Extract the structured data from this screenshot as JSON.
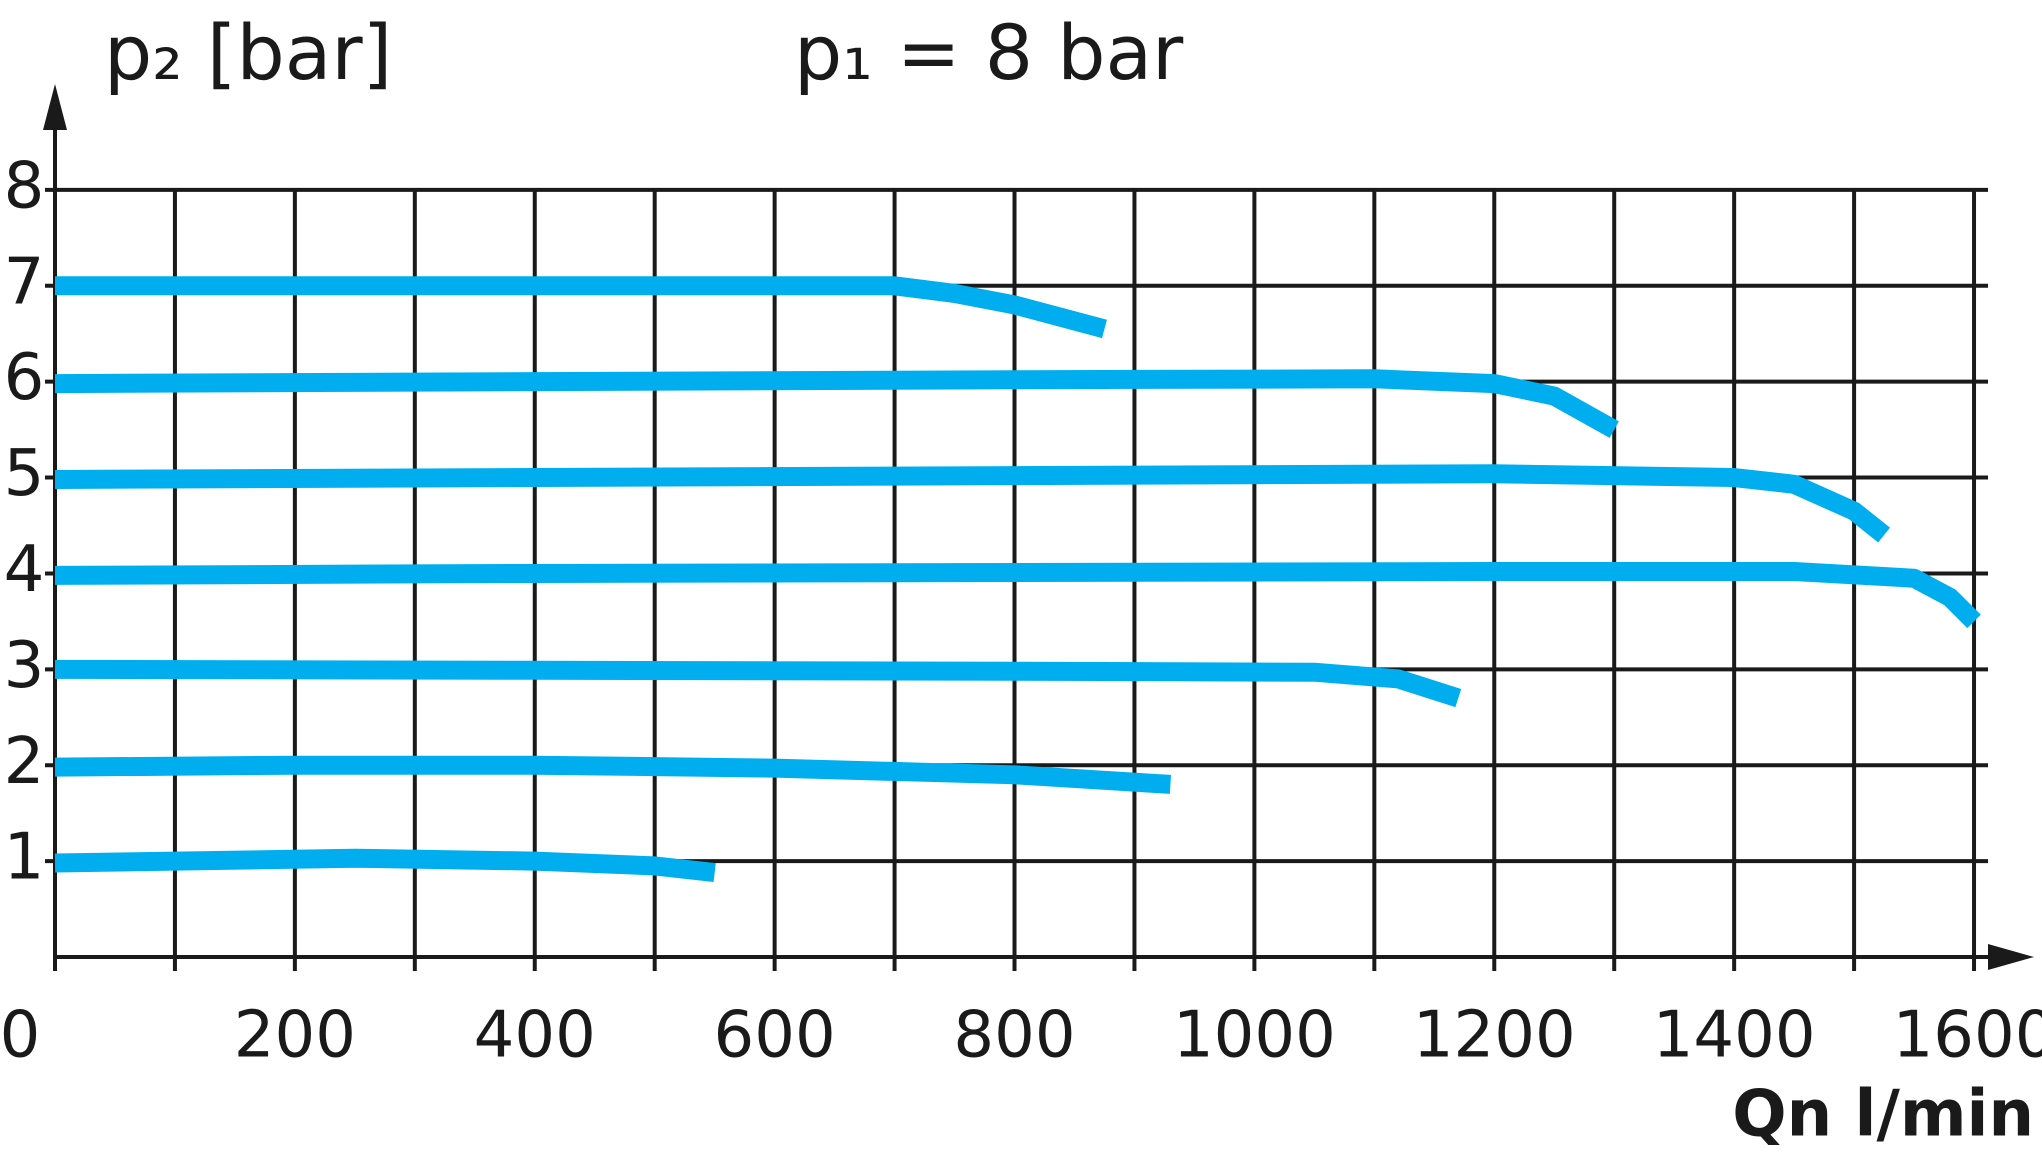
{
  "chart_data": {
    "type": "line",
    "title": "p₁ = 8 bar",
    "y_label": "p₂ [bar]",
    "x_label": "Qn l/min",
    "xlim": [
      0,
      1650
    ],
    "ylim": [
      0,
      9
    ],
    "xticks": [
      0,
      200,
      400,
      600,
      800,
      1000,
      1200,
      1400,
      1600
    ],
    "yticks": [
      1,
      2,
      3,
      4,
      5,
      6,
      7,
      8
    ],
    "grid": true,
    "series": [
      {
        "name": "p2 = 7 bar",
        "color": "#00aeef",
        "x": [
          0,
          200,
          400,
          600,
          700,
          750,
          800,
          875
        ],
        "values": [
          7.0,
          7.0,
          7.0,
          7.0,
          7.0,
          6.92,
          6.8,
          6.55
        ]
      },
      {
        "name": "p2 = 6 bar",
        "color": "#00aeef",
        "x": [
          0,
          400,
          800,
          1100,
          1200,
          1250,
          1300
        ],
        "values": [
          5.98,
          6.0,
          6.02,
          6.03,
          5.98,
          5.85,
          5.5
        ]
      },
      {
        "name": "p2 = 5 bar",
        "color": "#00aeef",
        "x": [
          0,
          400,
          800,
          1200,
          1400,
          1450,
          1500,
          1525
        ],
        "values": [
          4.98,
          5.0,
          5.02,
          5.04,
          5.0,
          4.93,
          4.65,
          4.4
        ]
      },
      {
        "name": "p2 = 4 bar",
        "color": "#00aeef",
        "x": [
          0,
          400,
          800,
          1200,
          1450,
          1550,
          1580,
          1600
        ],
        "values": [
          3.98,
          4.0,
          4.01,
          4.02,
          4.02,
          3.95,
          3.75,
          3.5
        ]
      },
      {
        "name": "p2 = 3 bar",
        "color": "#00aeef",
        "x": [
          0,
          400,
          800,
          1050,
          1120,
          1170
        ],
        "values": [
          3.0,
          2.99,
          2.98,
          2.97,
          2.9,
          2.7
        ]
      },
      {
        "name": "p2 = 2 bar",
        "color": "#00aeef",
        "x": [
          0,
          200,
          400,
          600,
          800,
          930
        ],
        "values": [
          1.98,
          2.0,
          2.0,
          1.97,
          1.9,
          1.8
        ]
      },
      {
        "name": "p2 = 1 bar",
        "color": "#00aeef",
        "x": [
          0,
          250,
          400,
          500,
          550
        ],
        "values": [
          0.98,
          1.03,
          1.0,
          0.95,
          0.88
        ]
      }
    ]
  }
}
